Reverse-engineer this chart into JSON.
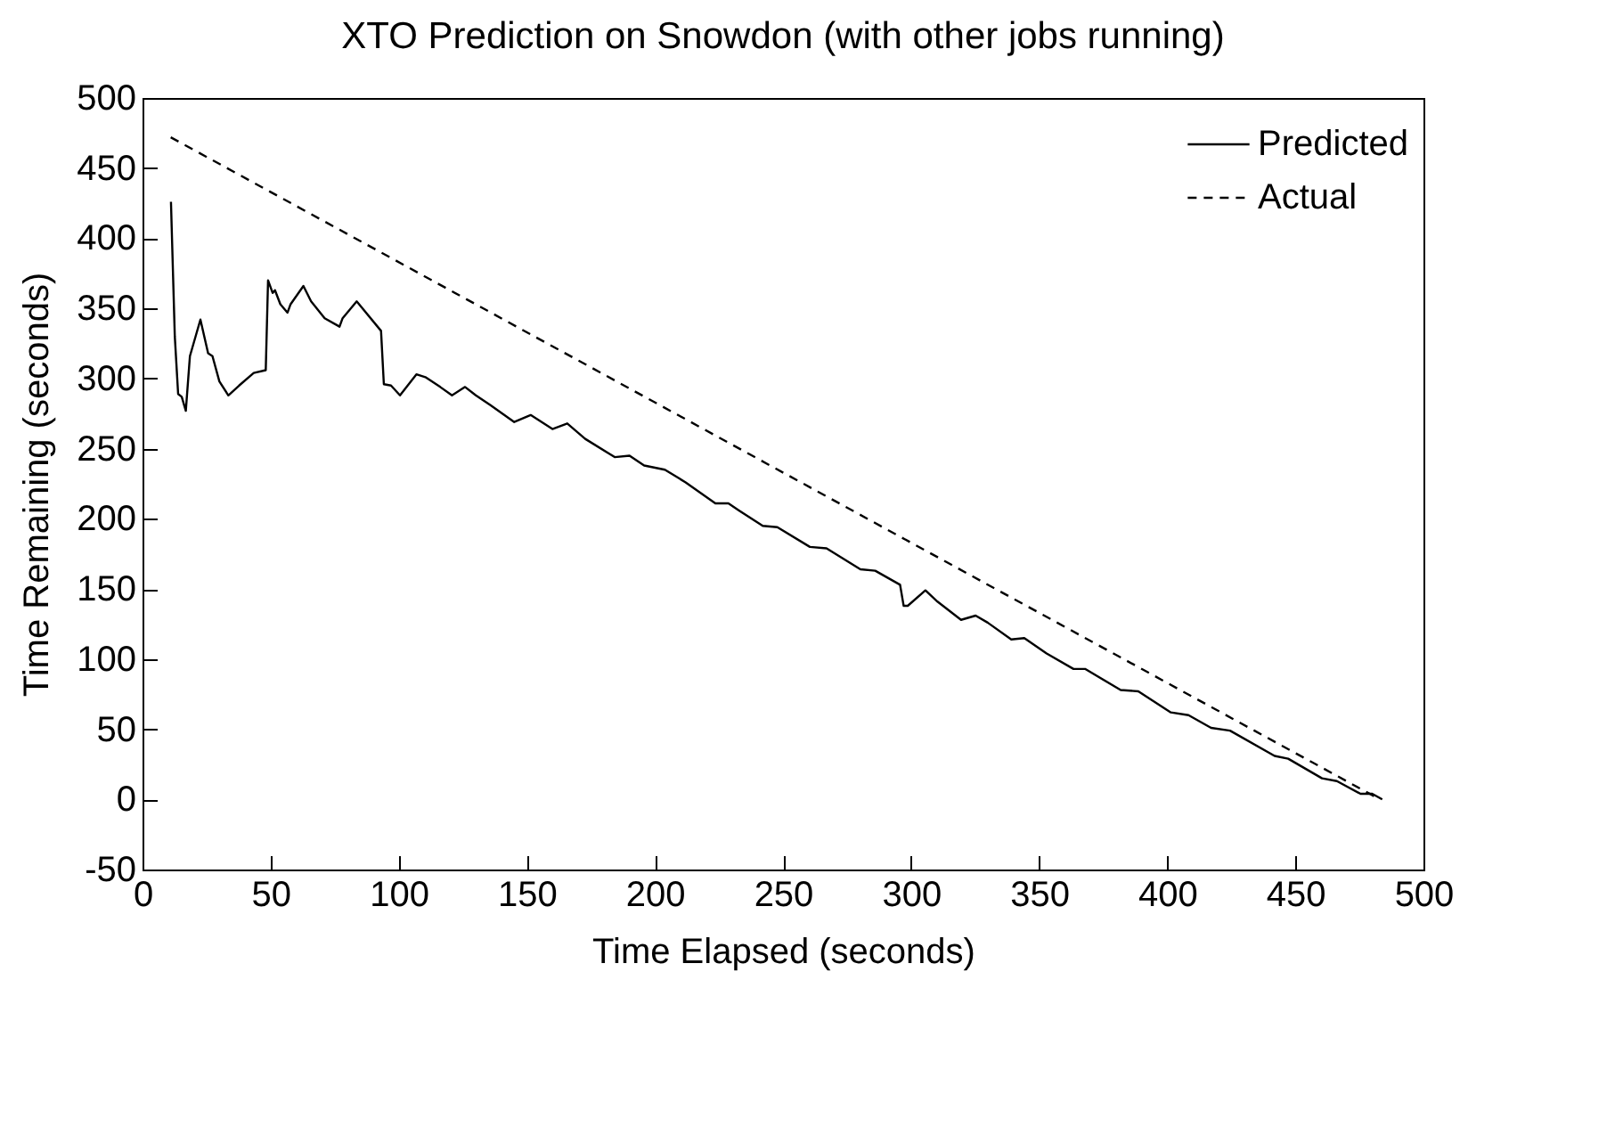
{
  "chart_data": {
    "type": "line",
    "title": "XTO Prediction on Snowdon (with other jobs running)",
    "xlabel": "Time Elapsed (seconds)",
    "ylabel": "Time Remaining (seconds)",
    "xlim": [
      0,
      500
    ],
    "xticks": [
      0,
      50,
      100,
      150,
      200,
      250,
      300,
      350,
      400,
      450,
      500
    ],
    "ylim": [
      -50,
      500
    ],
    "yticks": [
      -50,
      0,
      50,
      100,
      150,
      200,
      250,
      300,
      350,
      400,
      450,
      500
    ],
    "grid": false,
    "legend": "top right",
    "series": [
      {
        "name": "Predicted",
        "color": "#000000",
        "line_style": "solid",
        "x": [
          11.1,
          12.6,
          13.9,
          15.3,
          16.9,
          18.5,
          22.6,
          25.6,
          27.3,
          30.0,
          33.5,
          37.7,
          43.4,
          48.1,
          49.0,
          50.8,
          51.7,
          53.8,
          56.6,
          57.8,
          62.8,
          65.8,
          71.1,
          76.9,
          78.1,
          83.6,
          93.1,
          94.2,
          97.0,
          100.5,
          106.9,
          110.4,
          116.2,
          120.8,
          125.9,
          130.1,
          135.8,
          145.1,
          151.5,
          160.0,
          165.8,
          172.8,
          184.3,
          190.1,
          195.8,
          203.9,
          212.0,
          223.6,
          228.7,
          232.8,
          242.1,
          247.8,
          260.5,
          267.0,
          280.2,
          286.0,
          295.7,
          297.1,
          298.7,
          305.6,
          310.3,
          319.5,
          325.2,
          329.9,
          339.1,
          344.2,
          352.9,
          363.4,
          367.9,
          381.8,
          388.7,
          401.4,
          408.3,
          417.1,
          424.5,
          441.9,
          447.2,
          460.4,
          466.2,
          475.4,
          480.0,
          483.9
        ],
        "values": [
          426,
          330,
          289,
          287,
          277,
          316,
          342,
          318,
          316,
          298,
          288,
          295,
          304,
          306,
          370,
          361,
          363,
          353,
          347,
          353,
          366,
          355,
          343,
          337,
          343,
          355,
          334,
          296,
          295,
          288,
          303,
          301,
          294,
          288,
          294,
          288,
          281,
          269,
          274,
          264,
          268,
          257,
          244,
          245,
          238,
          235,
          226,
          211,
          211,
          206,
          195,
          194,
          180,
          179,
          164,
          163,
          153,
          138,
          138,
          149,
          141,
          128,
          131,
          126,
          114,
          115,
          104,
          93,
          93,
          78,
          77,
          62,
          60,
          51,
          49,
          31,
          29,
          15,
          13,
          4,
          4,
          0
        ]
      },
      {
        "name": "Actual",
        "color": "#000000",
        "line_style": "dashed",
        "x": [
          11,
          483
        ],
        "values": [
          472,
          0
        ]
      }
    ]
  }
}
